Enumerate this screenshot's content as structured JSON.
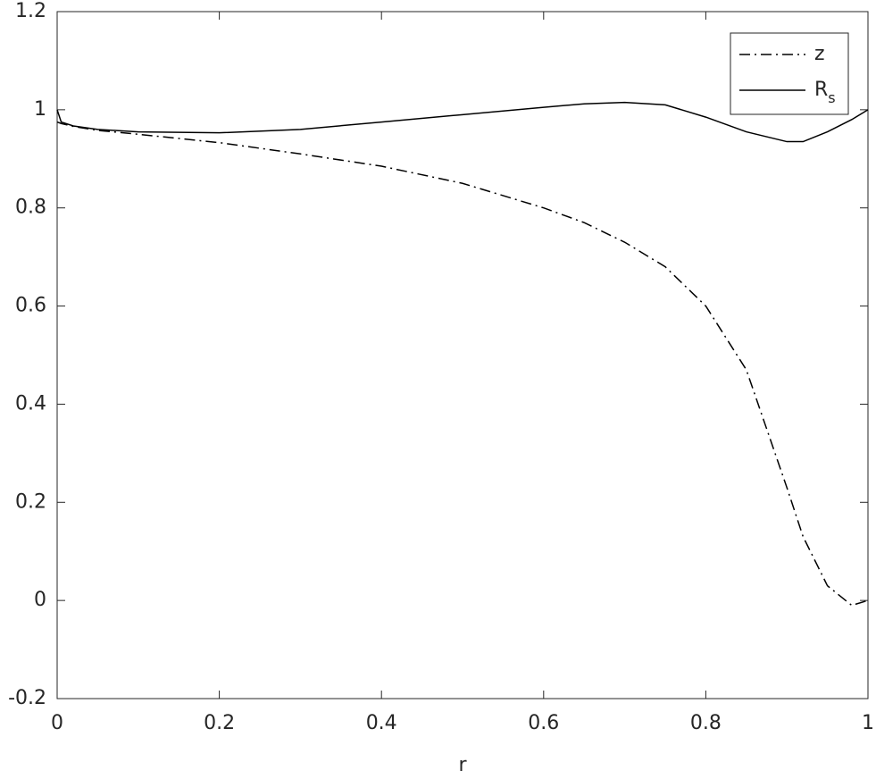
{
  "chart_data": {
    "type": "line",
    "x_label": "r",
    "x": [
      0,
      0.005,
      0.02,
      0.05,
      0.1,
      0.2,
      0.3,
      0.4,
      0.5,
      0.6,
      0.65,
      0.7,
      0.75,
      0.8,
      0.85,
      0.9,
      0.92,
      0.95,
      0.98,
      1
    ],
    "series": [
      {
        "name": "z",
        "color": "#000000",
        "linestyle": "dashdot",
        "values": [
          0.975,
          0.972,
          0.966,
          0.958,
          0.95,
          0.933,
          0.91,
          0.885,
          0.85,
          0.8,
          0.77,
          0.73,
          0.68,
          0.6,
          0.47,
          0.23,
          0.13,
          0.03,
          -0.01,
          0
        ]
      },
      {
        "name": "Rs",
        "color": "#000000",
        "linestyle": "solid",
        "values": [
          1.0,
          0.975,
          0.967,
          0.96,
          0.955,
          0.953,
          0.96,
          0.975,
          0.99,
          1.005,
          1.012,
          1.015,
          1.01,
          0.985,
          0.955,
          0.935,
          0.935,
          0.955,
          0.98,
          1.0
        ]
      }
    ],
    "xlim": [
      0,
      1
    ],
    "xticks": [
      0,
      0.2,
      0.4,
      0.6,
      0.8,
      1
    ],
    "ylim": [
      -0.2,
      1.2
    ],
    "yticks": [
      -0.2,
      0,
      0.2,
      0.4,
      0.6,
      0.8,
      1,
      1.2
    ],
    "grid": false,
    "legend": "upper right"
  }
}
